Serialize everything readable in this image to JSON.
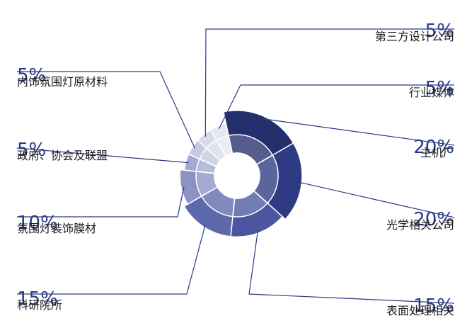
{
  "chart_data": {
    "type": "pie",
    "variant": "sunburst-rose",
    "title": "",
    "slices": [
      {
        "label": "主机厂",
        "value": 20,
        "display": "20%",
        "color": "#24306e"
      },
      {
        "label": "光学相关公司",
        "value": 20,
        "display": "20%",
        "color": "#2e3a82"
      },
      {
        "label": "表面处理相关",
        "value": 15,
        "display": "15%",
        "color": "#4a569f"
      },
      {
        "label": "科研院所",
        "value": 15,
        "display": "15%",
        "color": "#5e69ab"
      },
      {
        "label": "氛围灯装饰膜材",
        "value": 10,
        "display": "10%",
        "color": "#8b93c4"
      },
      {
        "label": "政府、协会及联盟",
        "value": 5,
        "display": "5%",
        "color": "#a3a9d1"
      },
      {
        "label": "内饰氛围灯原材料",
        "value": 5,
        "display": "5%",
        "color": "#c5c9e2"
      },
      {
        "label": "第三方设计公司",
        "value": 5,
        "display": "5%",
        "color": "#d8dbec"
      },
      {
        "label": "行业媒体",
        "value": 5,
        "display": "5%",
        "color": "#e4e6f1"
      }
    ]
  }
}
